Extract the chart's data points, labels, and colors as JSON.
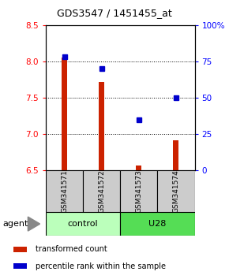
{
  "title": "GDS3547 / 1451455_at",
  "samples": [
    "GSM341571",
    "GSM341572",
    "GSM341573",
    "GSM341574"
  ],
  "bar_values": [
    8.05,
    7.72,
    6.56,
    6.91
  ],
  "percentile_values": [
    78,
    70,
    35,
    50
  ],
  "ylim_left": [
    6.5,
    8.5
  ],
  "ylim_right": [
    0,
    100
  ],
  "yticks_left": [
    6.5,
    7.0,
    7.5,
    8.0,
    8.5
  ],
  "yticks_right": [
    0,
    25,
    50,
    75,
    100
  ],
  "ytick_labels_right": [
    "0",
    "25",
    "50",
    "75",
    "100%"
  ],
  "groups": [
    {
      "label": "control",
      "samples": [
        0,
        1
      ],
      "color": "#bbffbb"
    },
    {
      "label": "U28",
      "samples": [
        2,
        3
      ],
      "color": "#55dd55"
    }
  ],
  "bar_color": "#cc2200",
  "dot_color": "#0000cc",
  "bar_width": 0.15,
  "agent_label": "agent",
  "legend_items": [
    {
      "color": "#cc2200",
      "label": "transformed count"
    },
    {
      "color": "#0000cc",
      "label": "percentile rank within the sample"
    }
  ],
  "sample_box_color": "#cccccc",
  "grid_color": "#000000"
}
